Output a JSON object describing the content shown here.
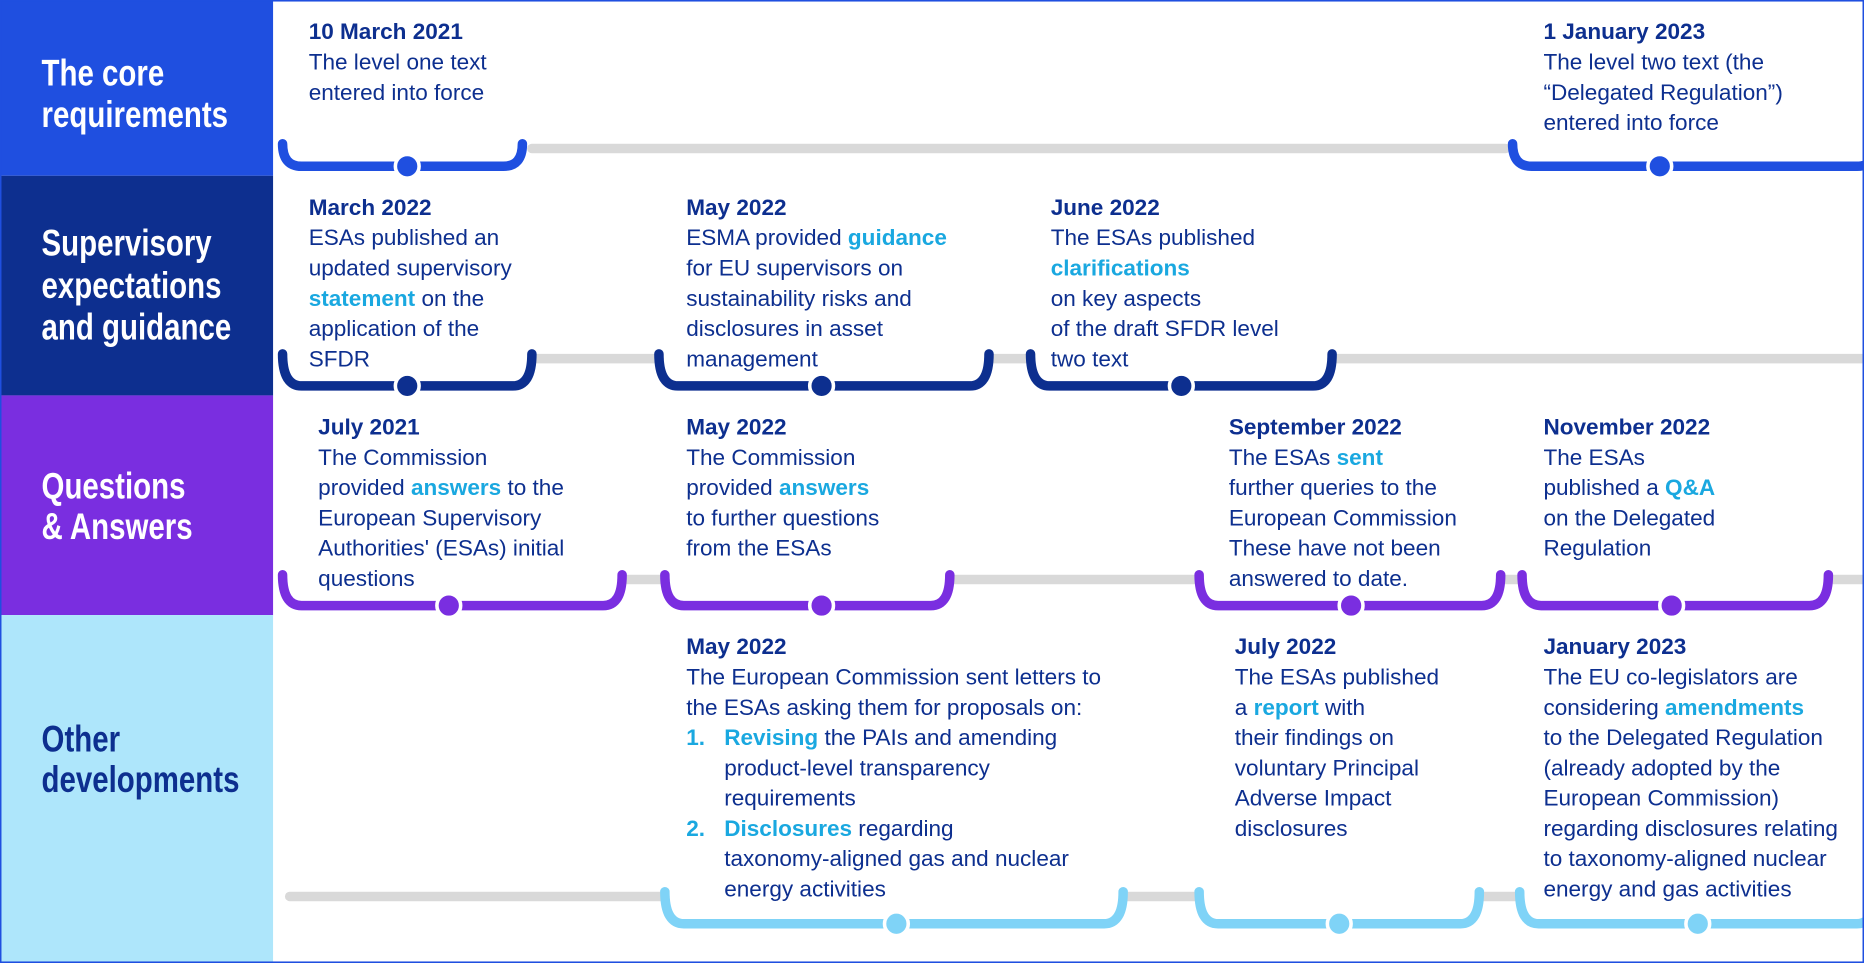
{
  "rows": [
    {
      "label": [
        "The core",
        "requirements"
      ],
      "events": [
        {
          "date": "10 March 2021",
          "lines": [
            [
              {
                "text": "The level one text"
              }
            ],
            [
              {
                "text": "entered into force"
              }
            ]
          ]
        },
        {
          "date": "1 January 2023",
          "lines": [
            [
              {
                "text": "The level two text (the"
              }
            ],
            [
              {
                "text": "“Delegated Regulation”)"
              }
            ],
            [
              {
                "text": "entered into force"
              }
            ]
          ]
        }
      ]
    },
    {
      "label": [
        "Supervisory",
        "expectations",
        "and guidance"
      ],
      "events": [
        {
          "date": "March 2022",
          "lines": [
            [
              {
                "text": "ESAs published an"
              }
            ],
            [
              {
                "text": "updated supervisory"
              }
            ],
            [
              {
                "text": "statement",
                "bold": true
              },
              {
                "text": " on the"
              }
            ],
            [
              {
                "text": "application of the"
              }
            ],
            [
              {
                "text": "SFDR"
              }
            ]
          ]
        },
        {
          "date": "May 2022",
          "lines": [
            [
              {
                "text": "ESMA provided "
              },
              {
                "text": "guidance",
                "bold": true
              }
            ],
            [
              {
                "text": "for EU supervisors on"
              }
            ],
            [
              {
                "text": "sustainability risks and"
              }
            ],
            [
              {
                "text": "disclosures in asset"
              }
            ],
            [
              {
                "text": "management"
              }
            ]
          ]
        },
        {
          "date": "June 2022",
          "lines": [
            [
              {
                "text": "The ESAs published"
              }
            ],
            [
              {
                "text": "clarifications",
                "bold": true
              }
            ],
            [
              {
                "text": "on key aspects"
              }
            ],
            [
              {
                "text": "of the draft SFDR level"
              }
            ],
            [
              {
                "text": "two text"
              }
            ]
          ]
        }
      ]
    },
    {
      "label": [
        "Questions",
        "& Answers"
      ],
      "events": [
        {
          "date": "July 2021",
          "lines": [
            [
              {
                "text": "The Commission"
              }
            ],
            [
              {
                "text": "provided "
              },
              {
                "text": "answers",
                "bold": true
              },
              {
                "text": " to the"
              }
            ],
            [
              {
                "text": "European Supervisory"
              }
            ],
            [
              {
                "text": "Authorities' (ESAs) initial"
              }
            ],
            [
              {
                "text": "questions"
              }
            ]
          ]
        },
        {
          "date": "May 2022",
          "lines": [
            [
              {
                "text": "The Commission"
              }
            ],
            [
              {
                "text": "provided "
              },
              {
                "text": "answers",
                "bold": true
              }
            ],
            [
              {
                "text": "to further questions"
              }
            ],
            [
              {
                "text": "from the ESAs"
              }
            ]
          ]
        },
        {
          "date": "September 2022",
          "lines": [
            [
              {
                "text": "The ESAs "
              },
              {
                "text": "sent",
                "bold": true
              }
            ],
            [
              {
                "text": "further queries to the"
              }
            ],
            [
              {
                "text": "European Commission"
              }
            ],
            [
              {
                "text": "These have not been"
              }
            ],
            [
              {
                "text": "answered to date."
              }
            ]
          ]
        },
        {
          "date": "November 2022",
          "lines": [
            [
              {
                "text": "The ESAs"
              }
            ],
            [
              {
                "text": "published a "
              },
              {
                "text": "Q&A",
                "bold": true
              }
            ],
            [
              {
                "text": "on the Delegated"
              }
            ],
            [
              {
                "text": "Regulation"
              }
            ]
          ]
        }
      ]
    },
    {
      "label": [
        "Other",
        "developments"
      ],
      "events": [
        {
          "date": "May 2022",
          "lines": [
            [
              {
                "text": "The European Commission sent letters to"
              }
            ],
            [
              {
                "text": "the ESAs asking them for proposals on:"
              }
            ]
          ],
          "items": [
            {
              "number": "1.",
              "lines": [
                [
                  {
                    "text": "Revising",
                    "bold": true
                  },
                  {
                    "text": " the PAIs and amending"
                  }
                ],
                [
                  {
                    "text": "product-level transparency"
                  }
                ],
                [
                  {
                    "text": "requirements"
                  }
                ]
              ]
            },
            {
              "number": "2.",
              "lines": [
                [
                  {
                    "text": "Disclosures",
                    "bold": true
                  },
                  {
                    "text": " regarding"
                  }
                ],
                [
                  {
                    "text": "taxonomy-aligned gas and nuclear"
                  }
                ],
                [
                  {
                    "text": "energy activities"
                  }
                ]
              ]
            }
          ]
        },
        {
          "date": "July 2022",
          "lines": [
            [
              {
                "text": "The ESAs published"
              }
            ],
            [
              {
                "text": "a "
              },
              {
                "text": "report",
                "bold": true
              },
              {
                "text": " with"
              }
            ],
            [
              {
                "text": "their findings on"
              }
            ],
            [
              {
                "text": "voluntary Principal"
              }
            ],
            [
              {
                "text": "Adverse Impact"
              }
            ],
            [
              {
                "text": "disclosures"
              }
            ]
          ]
        },
        {
          "date": "January 2023",
          "lines": [
            [
              {
                "text": "The EU co-legislators are"
              }
            ],
            [
              {
                "text": "considering "
              },
              {
                "text": "amendments",
                "bold": true
              }
            ],
            [
              {
                "text": "to the Delegated Regulation"
              }
            ],
            [
              {
                "text": "(already adopted by the"
              }
            ],
            [
              {
                "text": "European Commission)"
              }
            ],
            [
              {
                "text": "regarding disclosures relating"
              }
            ],
            [
              {
                "text": "to taxonomy-aligned nuclear"
              }
            ],
            [
              {
                "text": "energy and gas activities"
              }
            ]
          ]
        }
      ]
    }
  ]
}
